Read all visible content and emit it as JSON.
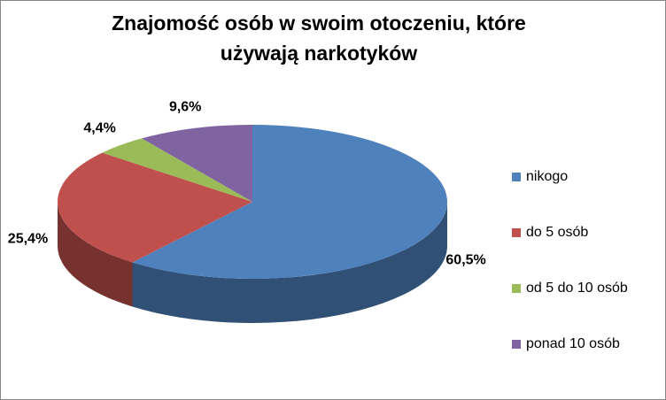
{
  "chart_data": {
    "type": "pie3d",
    "title": [
      "Znajomość osób w swoim otoczeniu, które",
      "używają narkotyków"
    ],
    "categories": [
      "nikogo",
      "do 5 osób",
      "od 5 do 10 osób",
      "ponad 10 osób"
    ],
    "values": [
      60.5,
      25.4,
      4.4,
      9.6
    ],
    "value_labels": [
      "60,5%",
      "25,4%",
      "4,4%",
      "9,6%"
    ],
    "colors": [
      "#4f81bd",
      "#c0504d",
      "#9bbb59",
      "#8064a2"
    ],
    "legend": "right"
  }
}
